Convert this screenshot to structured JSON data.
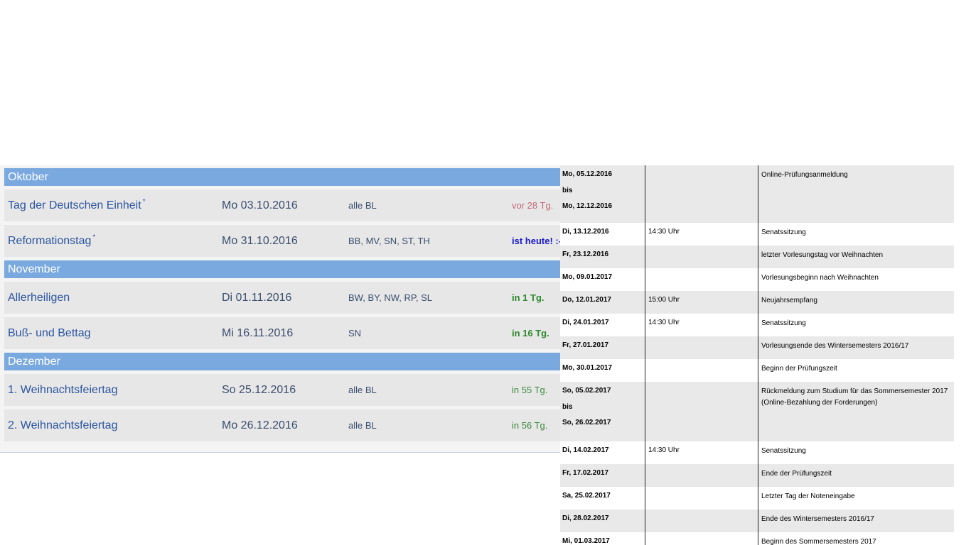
{
  "holidays": {
    "months": [
      {
        "name": "Oktober",
        "items": [
          {
            "name": "Tag der Deutschen Einheit",
            "mark": "*",
            "date": "Mo 03.10.2016",
            "states": "alle BL",
            "relative": "vor 28 Tg.",
            "status": "past"
          },
          {
            "name": "Reformationstag",
            "mark": "*",
            "date": "Mo 31.10.2016",
            "states": "BB, MV, SN, ST, TH",
            "relative": "ist heute! :-",
            "status": "today"
          }
        ]
      },
      {
        "name": "November",
        "items": [
          {
            "name": "Allerheiligen",
            "mark": "",
            "date": "Di 01.11.2016",
            "states": "BW, BY, NW, RP, SL",
            "relative": "in 1 Tg.",
            "status": "soon"
          },
          {
            "name": "Buß- und Bettag",
            "mark": "",
            "date": "Mi 16.11.2016",
            "states": "SN",
            "relative": "in 16 Tg.",
            "status": "soon"
          }
        ]
      },
      {
        "name": "Dezember",
        "items": [
          {
            "name": "1. Weihnachtsfeiertag",
            "mark": "",
            "date": "So 25.12.2016",
            "states": "alle BL",
            "relative": "in 55 Tg.",
            "status": "later"
          },
          {
            "name": "2. Weihnachtsfeiertag",
            "mark": "",
            "date": "Mo 26.12.2016",
            "states": "alle BL",
            "relative": "in 56 Tg.",
            "status": "later"
          }
        ]
      }
    ]
  },
  "semester_dates": {
    "rows": [
      {
        "date_lines": [
          "Mo, 05.12.2016",
          "bis",
          "Mo, 12.12.2016"
        ],
        "time": "",
        "event": "Online-Prüfungsanmeldung"
      },
      {
        "date_lines": [
          "Di, 13.12.2016"
        ],
        "time": "14:30 Uhr",
        "event": "Senatssitzung"
      },
      {
        "date_lines": [
          "Fr, 23.12.2016"
        ],
        "time": "",
        "event": "letzter Vorlesungstag vor Weihnachten"
      },
      {
        "date_lines": [
          "Mo, 09.01.2017"
        ],
        "time": "",
        "event": "Vorlesungsbeginn nach Weihnachten"
      },
      {
        "date_lines": [
          "Do, 12.01.2017"
        ],
        "time": "15:00 Uhr",
        "event": "Neujahrsempfang"
      },
      {
        "date_lines": [
          "Di, 24.01.2017"
        ],
        "time": "14:30 Uhr",
        "event": "Senatssitzung"
      },
      {
        "date_lines": [
          "Fr, 27.01.2017"
        ],
        "time": "",
        "event": "Vorlesungsende des Wintersemesters 2016/17"
      },
      {
        "date_lines": [
          "Mo, 30.01.2017"
        ],
        "time": "",
        "event": "Beginn der Prüfungszeit"
      },
      {
        "date_lines": [
          "So, 05.02.2017",
          " bis",
          "So, 26.02.2017"
        ],
        "time": "",
        "event": "Rückmeldung zum Studium für das Sommersemester 2017\n(Online-Bezahlung der Forderungen)"
      },
      {
        "date_lines": [
          "Di, 14.02.2017"
        ],
        "time": "14:30 Uhr",
        "event": "Senatssitzung"
      },
      {
        "date_lines": [
          "Fr, 17.02.2017"
        ],
        "time": "",
        "event": "Ende der Prüfungszeit"
      },
      {
        "date_lines": [
          "Sa, 25.02.2017"
        ],
        "time": "",
        "event": "Letzter Tag der Noteneingabe"
      },
      {
        "date_lines": [
          "Di, 28.02.2017"
        ],
        "time": "",
        "event": "Ende des Wintersemesters 2016/17"
      },
      {
        "date_lines": [
          "Mi, 01.03.2017"
        ],
        "time": "",
        "event": "Beginn des Sommersemesters 2017"
      }
    ]
  }
}
